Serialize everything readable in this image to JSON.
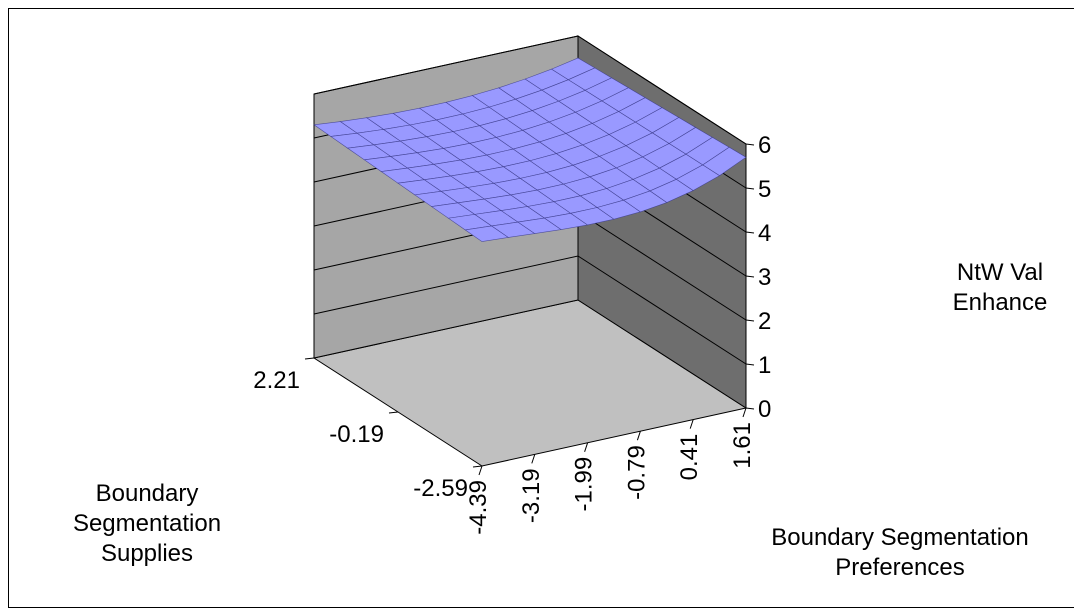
{
  "chart_data": {
    "type": "surface",
    "title": "",
    "zlabel_lines": [
      "NtW Val",
      "Enhance"
    ],
    "xlabel_lines": [
      "Boundary Segmentation",
      "Preferences"
    ],
    "ylabel_lines": [
      "Boundary",
      "Segmentation",
      "Supplies"
    ],
    "x_ticks": [
      "-4.39",
      "-3.19",
      "-1.99",
      "-0.79",
      "0.41",
      "1.61"
    ],
    "y_ticks": [
      "2.21",
      "-0.19",
      "-2.59"
    ],
    "z_ticks": [
      "0",
      "1",
      "2",
      "3",
      "4",
      "5",
      "6"
    ],
    "zlim": [
      0,
      6
    ],
    "surface": {
      "x_range": [
        -4.39,
        1.61
      ],
      "y_range": [
        -2.59,
        2.21
      ],
      "approx_z": {
        "back_left_corner": 5.3,
        "back_right_corner": 5.5,
        "front_left_corner": 5.1,
        "front_right_corner": 5.7,
        "minimum": 4.8
      }
    },
    "colors": {
      "surface": "#9999ff",
      "back_wall": "#a6a6a6",
      "side_wall": "#6e6e6e",
      "floor": "#c0c0c0",
      "gridline": "#000000"
    }
  }
}
